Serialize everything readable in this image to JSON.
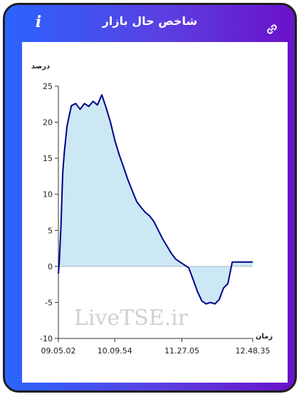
{
  "header": {
    "title": "شاخص حال بازار",
    "info_icon": "info-icon",
    "link_icon": "link-icon"
  },
  "colors": {
    "header_gradient_start": "#2a64ff",
    "header_gradient_end": "#6a11c9",
    "line": "#00008b",
    "area_fill": "#cce8f4",
    "zero_line": "#b0b8c8",
    "watermark": "#d0d0d0"
  },
  "watermark": "LiveTSE.ir",
  "chart_data": {
    "type": "area",
    "ylabel": "درصد",
    "xlabel": "زمان",
    "ylim": [
      -10,
      25
    ],
    "yticks": [
      25,
      20,
      15,
      10,
      5,
      0,
      -5,
      -10
    ],
    "xticks": [
      "09.05.02",
      "10.09.54",
      "11.27.05",
      "12.48.35"
    ],
    "grid": false,
    "series": [
      {
        "x": [
          "09.05.02",
          "09.06.00",
          "09.08.00",
          "09.10.00",
          "09.12.00",
          "09.15.00",
          "09.20.00",
          "09.25.00",
          "09.30.00",
          "09.35.00",
          "09.40.00",
          "09.45.00",
          "09.50.00",
          "09.55.00",
          "10.00.00",
          "10.05.00",
          "10.10.00",
          "10.15.00",
          "10.20.00",
          "10.25.00",
          "10.30.00",
          "10.35.00",
          "10.40.00",
          "10.45.00",
          "10.50.00",
          "10.55.00",
          "11.00.00",
          "11.05.00",
          "11.10.00",
          "11.15.00",
          "11.20.00",
          "11.25.00",
          "11.30.00",
          "11.35.00",
          "11.40.00",
          "11.45.00",
          "11.50.00",
          "11.55.00",
          "12.00.00",
          "12.05.00",
          "12.10.00",
          "12.15.00",
          "12.20.00",
          "12.25.00",
          "12.30.00",
          "12.35.00",
          "12.40.00",
          "12.45.00",
          "12.48.35"
        ],
        "values": [
          -1.0,
          0.5,
          5.5,
          13.0,
          16.0,
          19.5,
          22.3,
          22.6,
          21.8,
          22.6,
          22.2,
          22.9,
          22.4,
          23.8,
          22.0,
          20.0,
          17.5,
          15.5,
          13.8,
          12.0,
          10.5,
          9.0,
          8.2,
          7.5,
          7.0,
          6.2,
          5.0,
          3.8,
          2.8,
          1.8,
          1.0,
          0.6,
          0.2,
          -0.2,
          -1.8,
          -3.5,
          -4.8,
          -5.2,
          -5.0,
          -5.2,
          -4.6,
          -3.0,
          -2.4,
          0.6,
          0.6,
          0.6,
          0.6,
          0.6,
          0.6
        ]
      }
    ]
  }
}
